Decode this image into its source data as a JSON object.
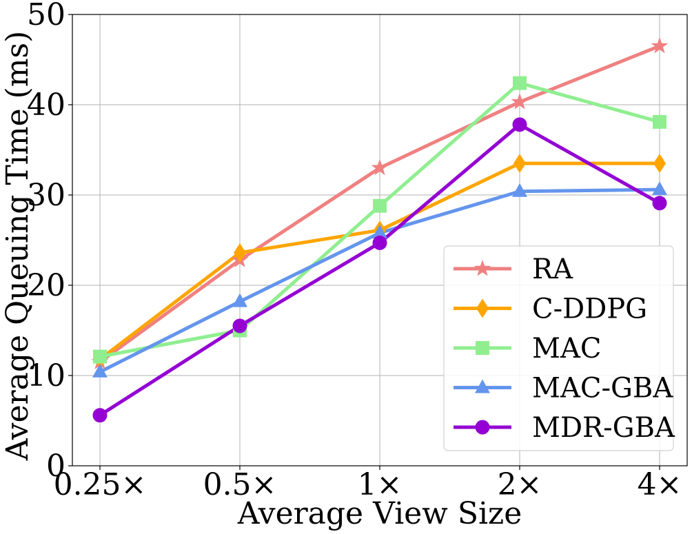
{
  "chart_data": {
    "type": "line",
    "categories": [
      "0.25×",
      "0.5×",
      "1×",
      "2×",
      "4×"
    ],
    "xlabel": "Average View Size",
    "ylabel": "Average Queuing Time (ms)",
    "ylim": [
      0,
      50
    ],
    "yticks": [
      "0",
      "10",
      "20",
      "30",
      "40",
      "50"
    ],
    "grid": true,
    "legend_position": "lower-right",
    "series": [
      {
        "name": "RA",
        "marker": "star",
        "color": "#f08080",
        "values": [
          11.5,
          22.8,
          33.0,
          40.3,
          46.5
        ]
      },
      {
        "name": "C-DDPG",
        "marker": "diamond",
        "color": "#ffa500",
        "values": [
          11.8,
          23.6,
          26.1,
          33.5,
          33.5
        ]
      },
      {
        "name": "MAC",
        "marker": "square",
        "color": "#90ee90",
        "values": [
          12.1,
          15.0,
          28.8,
          42.4,
          38.1
        ]
      },
      {
        "name": "MAC-GBA",
        "marker": "triangle",
        "color": "#6495ed",
        "values": [
          10.4,
          18.2,
          25.8,
          30.4,
          30.6
        ]
      },
      {
        "name": "MDR-GBA",
        "marker": "circle",
        "color": "#9400d3",
        "values": [
          5.6,
          15.5,
          24.7,
          37.8,
          29.1
        ]
      }
    ]
  }
}
